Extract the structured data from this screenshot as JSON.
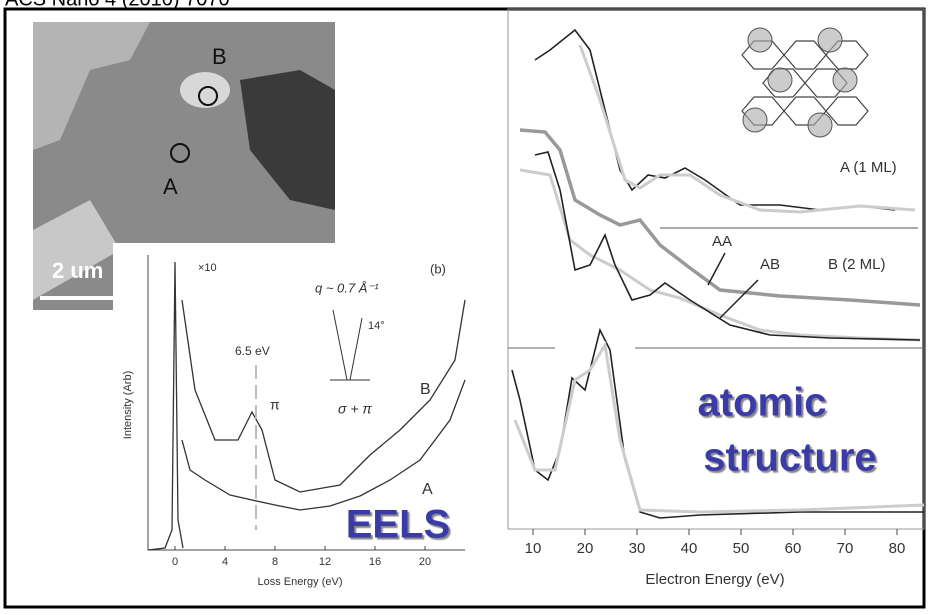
{
  "header": {
    "citation": "ACS Nano 4 (2010) 7070"
  },
  "micrograph": {
    "labels": [
      "B",
      "A"
    ],
    "scale_bar": "2 um"
  },
  "eels": {
    "panel_label": "(b)",
    "y_axis_label": "Intensity (Arb)",
    "x_axis_label": "Loss Energy (eV)",
    "x_ticks": [
      "0",
      "4",
      "8",
      "12",
      "16",
      "20"
    ],
    "annotations": {
      "scale": "×10",
      "momentum": "q ~ 0.7 Å⁻¹",
      "angle": "14°",
      "plasmon": "6.5 eV",
      "pi": "π",
      "sigma_pi": "σ + π",
      "curve_b": "B",
      "curve_a": "A"
    },
    "caption": "EELS"
  },
  "spectra": {
    "x_axis_label": "Electron Energy (eV)",
    "x_ticks": [
      "10",
      "20",
      "30",
      "40",
      "50",
      "60",
      "70",
      "80"
    ],
    "labels": {
      "a": "A (1 ML)",
      "b": "B (2 ML)",
      "aa": "AA",
      "ab": "AB"
    },
    "caption": [
      "atomic",
      "structure"
    ]
  }
}
